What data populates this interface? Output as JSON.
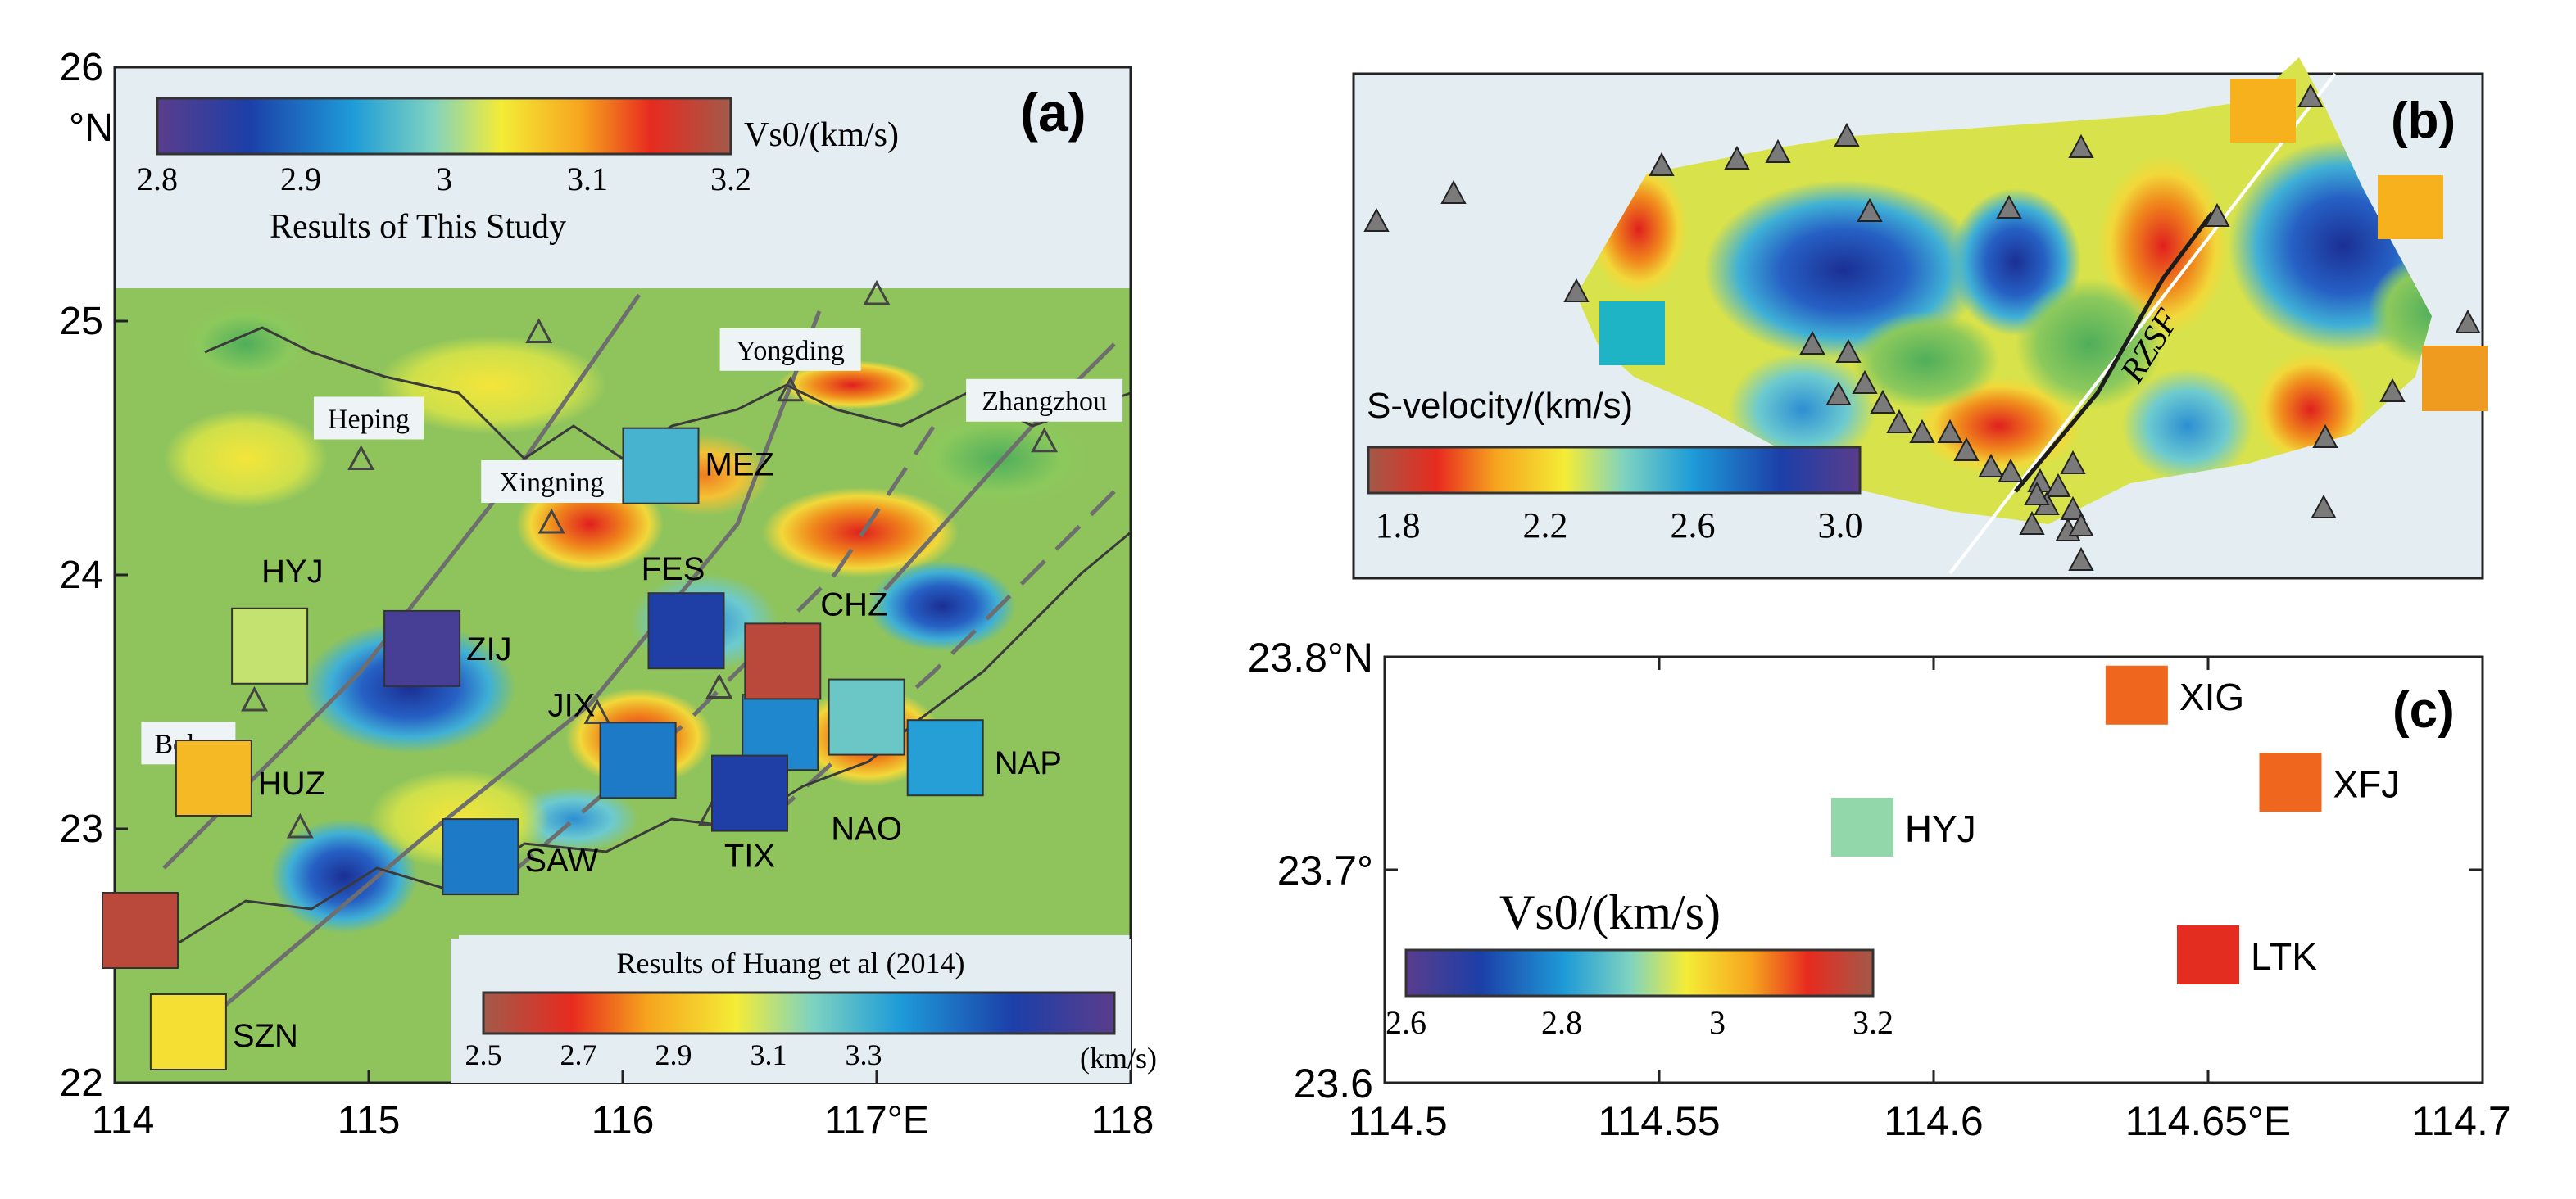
{
  "panel_a": {
    "panel_label": "(a)",
    "lat_ticks": [
      "26",
      "25",
      "24",
      "23",
      "22"
    ],
    "lat_unit": "°N",
    "lon_ticks": [
      "114",
      "115",
      "116",
      "117°E",
      "118"
    ],
    "colorbar_top": {
      "title": "Vs0/(km/s)",
      "ticks": [
        "2.8",
        "2.9",
        "3",
        "3.1",
        "3.2"
      ],
      "subtitle": "Results of This Study"
    },
    "colorbar_bottom": {
      "title": "Results of Huang et al (2014)",
      "ticks": [
        "2.5",
        "2.7",
        "2.9",
        "3.1",
        "3.3"
      ],
      "unit": "(km/s)"
    },
    "places": [
      {
        "name": "Heping",
        "lon": 115.0,
        "lat": 24.45
      },
      {
        "name": "Xingning",
        "lon": 115.72,
        "lat": 24.2
      },
      {
        "name": "Yongding",
        "lon": 116.66,
        "lat": 24.72
      },
      {
        "name": "Zhangzhou",
        "lon": 117.66,
        "lat": 24.52
      },
      {
        "name": "Boluo",
        "lon": 114.29,
        "lat": 23.17
      }
    ],
    "stations": [
      {
        "code": "HYJ",
        "lon": 114.61,
        "lat": 23.72,
        "vs": 3.02
      },
      {
        "code": "ZIJ",
        "lon": 115.21,
        "lat": 23.71,
        "vs": 2.82
      },
      {
        "code": "MEZ",
        "lon": 116.15,
        "lat": 24.43,
        "vs": 2.96
      },
      {
        "code": "FES",
        "lon": 116.25,
        "lat": 23.78,
        "vs": 2.86
      },
      {
        "code": "CHZ",
        "lon": 116.63,
        "lat": 23.66,
        "vs": 3.18
      },
      {
        "code": "JIX",
        "lon": 116.06,
        "lat": 23.27,
        "vs": 2.91
      },
      {
        "code": "HUZ",
        "lon": 114.39,
        "lat": 23.2,
        "vs": 3.08
      },
      {
        "code": "SAW",
        "lon": 115.44,
        "lat": 22.89,
        "vs": 2.91
      },
      {
        "code": "TIX",
        "lon": 116.5,
        "lat": 23.14,
        "vs": 2.86
      },
      {
        "code": "NAO",
        "lon": 116.96,
        "lat": 23.44,
        "vs": 2.98
      },
      {
        "code": "NAP",
        "lon": 117.27,
        "lat": 23.28,
        "vs": 2.94
      },
      {
        "code": "SZN",
        "lon": 114.29,
        "lat": 22.2,
        "vs": 3.05
      }
    ],
    "unlabeled_squares": [
      {
        "lon": 114.1,
        "lat": 22.6,
        "vs": 3.18
      },
      {
        "lon": 116.62,
        "lat": 23.38,
        "vs": 2.92
      }
    ]
  },
  "panel_b": {
    "panel_label": "(b)",
    "colorbar": {
      "title": "S-velocity/(km/s)",
      "ticks": [
        "1.8",
        "2.2",
        "2.6",
        "3.0"
      ]
    },
    "fault_label": "RZSF"
  },
  "panel_c": {
    "panel_label": "(c)",
    "lat_ticks": [
      "23.8°N",
      "23.7°",
      "23.6"
    ],
    "lon_ticks": [
      "114.5",
      "114.55",
      "114.6",
      "114.65°E",
      "114.7"
    ],
    "colorbar": {
      "title": "Vs0/(km/s)",
      "ticks": [
        "2.6",
        "2.8",
        "3",
        "3.2"
      ]
    },
    "stations": [
      {
        "code": "XIG",
        "lon": 114.637,
        "lat": 23.782,
        "vs": 3.08
      },
      {
        "code": "XFJ",
        "lon": 114.665,
        "lat": 23.741,
        "vs": 3.08
      },
      {
        "code": "HYJ",
        "lon": 114.587,
        "lat": 23.72,
        "vs": 2.9
      },
      {
        "code": "LTK",
        "lon": 114.65,
        "lat": 23.66,
        "vs": 3.12
      }
    ]
  },
  "colors": {
    "land": "#8fc45d",
    "sea_light": "#e4eef2",
    "frame": "#222222"
  }
}
